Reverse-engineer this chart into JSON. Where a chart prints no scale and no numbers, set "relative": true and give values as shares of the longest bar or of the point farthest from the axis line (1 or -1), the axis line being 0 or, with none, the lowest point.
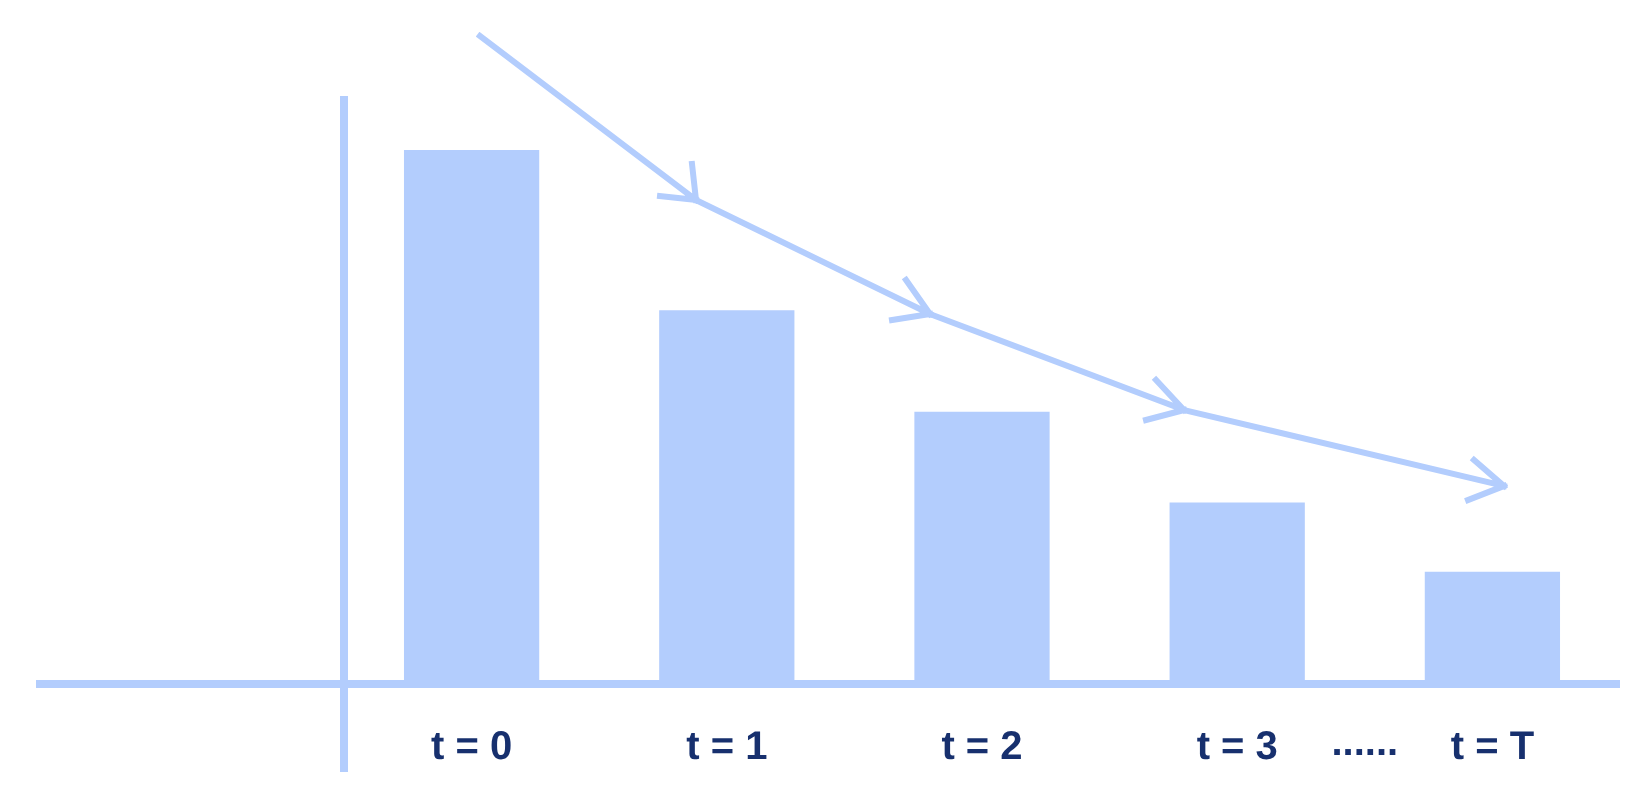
{
  "chart_data": {
    "type": "bar",
    "relative": true,
    "categories": [
      "t = 0",
      "t = 1",
      "t = 2",
      "t = 3",
      "t = T"
    ],
    "values": [
      1,
      0.7,
      0.51,
      0.34,
      0.21
    ],
    "color": "#b3cdfd",
    "annotations": [
      "......"
    ],
    "grid": false,
    "legend": false
  }
}
